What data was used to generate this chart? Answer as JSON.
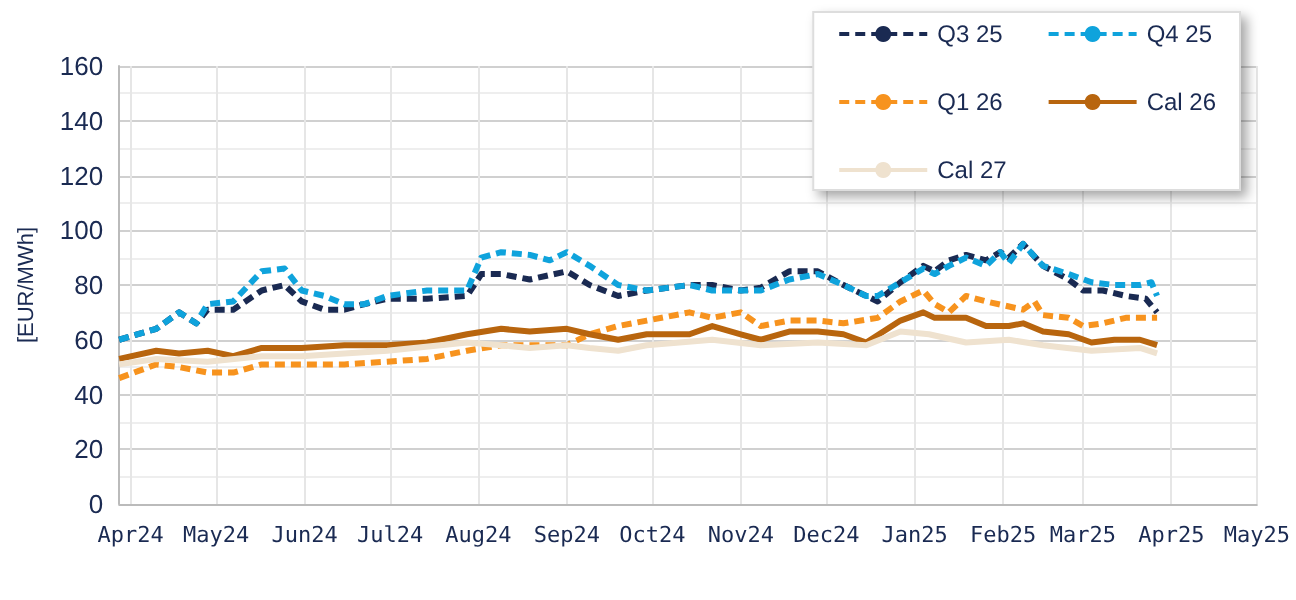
{
  "chart_data": {
    "type": "line",
    "ylabel": "[EUR/MWh]",
    "xlim": [
      "2024-03-28",
      "2025-05-01"
    ],
    "xticks": [
      {
        "value": "2024-04-01",
        "label": "Apr24"
      },
      {
        "value": "2024-05-01",
        "label": "May24"
      },
      {
        "value": "2024-06-01",
        "label": "Jun24"
      },
      {
        "value": "2024-07-01",
        "label": "Jul24"
      },
      {
        "value": "2024-08-01",
        "label": "Aug24"
      },
      {
        "value": "2024-09-01",
        "label": "Sep24"
      },
      {
        "value": "2024-10-01",
        "label": "Oct24"
      },
      {
        "value": "2024-11-01",
        "label": "Nov24"
      },
      {
        "value": "2024-12-01",
        "label": "Dec24"
      },
      {
        "value": "2025-01-01",
        "label": "Jan25"
      },
      {
        "value": "2025-02-01",
        "label": "Feb25"
      },
      {
        "value": "2025-03-01",
        "label": "Mar25"
      },
      {
        "value": "2025-04-01",
        "label": "Apr25"
      },
      {
        "value": "2025-05-01",
        "label": "May25"
      }
    ],
    "ylim": [
      0,
      160
    ],
    "yticks": [
      0,
      20,
      40,
      60,
      80,
      100,
      120,
      140,
      160
    ],
    "grid": true,
    "legend": "top right",
    "marker": "none",
    "series": [
      {
        "name": "Q3 25",
        "color": "#1a2a52",
        "line_style": "dashed",
        "x": [
          "2024-03-28",
          "2024-04-10",
          "2024-04-18",
          "2024-04-24",
          "2024-04-28",
          "2024-05-07",
          "2024-05-17",
          "2024-05-25",
          "2024-05-31",
          "2024-06-08",
          "2024-06-15",
          "2024-06-22",
          "2024-06-30",
          "2024-07-14",
          "2024-07-28",
          "2024-08-02",
          "2024-08-09",
          "2024-08-19",
          "2024-09-01",
          "2024-09-09",
          "2024-09-19",
          "2024-09-29",
          "2024-10-14",
          "2024-10-22",
          "2024-11-01",
          "2024-11-08",
          "2024-11-18",
          "2024-11-28",
          "2024-12-07",
          "2024-12-15",
          "2024-12-19",
          "2024-12-27",
          "2025-01-04",
          "2025-01-08",
          "2025-01-13",
          "2025-01-19",
          "2025-01-26",
          "2025-01-31",
          "2025-02-03",
          "2025-02-08",
          "2025-02-15",
          "2025-02-24",
          "2025-03-01",
          "2025-03-08",
          "2025-03-16",
          "2025-03-23",
          "2025-03-27"
        ],
        "values": [
          60,
          64,
          70,
          66,
          71,
          71,
          78,
          80,
          74,
          71,
          71,
          73,
          75,
          75,
          76,
          84,
          84,
          82,
          85,
          80,
          76,
          78,
          80,
          80,
          78,
          79,
          85,
          85,
          80,
          76,
          74,
          81,
          87,
          85,
          89,
          91,
          89,
          92,
          90,
          95,
          87,
          82,
          78,
          78,
          76,
          75,
          70
        ]
      },
      {
        "name": "Q4 25",
        "color": "#0fa3dc",
        "line_style": "dashed",
        "x": [
          "2024-03-28",
          "2024-04-10",
          "2024-04-18",
          "2024-04-24",
          "2024-04-28",
          "2024-05-07",
          "2024-05-17",
          "2024-05-25",
          "2024-05-31",
          "2024-06-08",
          "2024-06-15",
          "2024-06-22",
          "2024-06-30",
          "2024-07-14",
          "2024-07-28",
          "2024-08-02",
          "2024-08-09",
          "2024-08-19",
          "2024-08-26",
          "2024-09-01",
          "2024-09-09",
          "2024-09-19",
          "2024-09-29",
          "2024-10-14",
          "2024-10-22",
          "2024-11-01",
          "2024-11-08",
          "2024-11-18",
          "2024-11-28",
          "2024-12-07",
          "2024-12-15",
          "2024-12-19",
          "2024-12-27",
          "2025-01-04",
          "2025-01-08",
          "2025-01-13",
          "2025-01-19",
          "2025-01-26",
          "2025-01-31",
          "2025-02-03",
          "2025-02-08",
          "2025-02-15",
          "2025-02-24",
          "2025-03-04",
          "2025-03-12",
          "2025-03-21",
          "2025-03-25",
          "2025-03-27"
        ],
        "values": [
          60,
          64,
          70,
          66,
          73,
          74,
          85,
          86,
          78,
          76,
          73,
          73,
          76,
          78,
          78,
          90,
          92,
          91,
          89,
          92,
          87,
          80,
          78,
          80,
          78,
          78,
          78,
          82,
          84,
          80,
          76,
          76,
          81,
          86,
          84,
          87,
          90,
          87,
          92,
          88,
          95,
          87,
          84,
          81,
          80,
          80,
          81,
          76
        ]
      },
      {
        "name": "Q1 26",
        "color": "#f7931e",
        "line_style": "dashed",
        "x": [
          "2024-03-28",
          "2024-04-10",
          "2024-04-18",
          "2024-04-28",
          "2024-05-07",
          "2024-05-17",
          "2024-05-31",
          "2024-06-15",
          "2024-06-30",
          "2024-07-14",
          "2024-07-28",
          "2024-08-09",
          "2024-08-19",
          "2024-09-01",
          "2024-09-09",
          "2024-09-19",
          "2024-09-29",
          "2024-10-14",
          "2024-10-22",
          "2024-11-01",
          "2024-11-08",
          "2024-11-18",
          "2024-11-28",
          "2024-12-07",
          "2024-12-19",
          "2024-12-27",
          "2025-01-04",
          "2025-01-08",
          "2025-01-13",
          "2025-01-19",
          "2025-01-26",
          "2025-02-08",
          "2025-02-12",
          "2025-02-15",
          "2025-02-24",
          "2025-03-01",
          "2025-03-08",
          "2025-03-16",
          "2025-03-27"
        ],
        "values": [
          46,
          51,
          50,
          48,
          48,
          51,
          51,
          51,
          52,
          53,
          56,
          58,
          58,
          58,
          62,
          65,
          67,
          70,
          68,
          70,
          65,
          67,
          67,
          66,
          68,
          74,
          78,
          73,
          70,
          76,
          74,
          71,
          74,
          69,
          68,
          65,
          66,
          68,
          68
        ]
      },
      {
        "name": "Cal 26",
        "color": "#b8650e",
        "line_style": "solid",
        "x": [
          "2024-03-28",
          "2024-04-10",
          "2024-04-18",
          "2024-04-28",
          "2024-05-07",
          "2024-05-17",
          "2024-05-31",
          "2024-06-15",
          "2024-06-30",
          "2024-07-14",
          "2024-07-28",
          "2024-08-09",
          "2024-08-19",
          "2024-09-01",
          "2024-09-09",
          "2024-09-19",
          "2024-09-29",
          "2024-10-14",
          "2024-10-22",
          "2024-11-01",
          "2024-11-08",
          "2024-11-18",
          "2024-11-28",
          "2024-12-07",
          "2024-12-15",
          "2024-12-27",
          "2025-01-04",
          "2025-01-08",
          "2025-01-19",
          "2025-01-26",
          "2025-02-03",
          "2025-02-08",
          "2025-02-15",
          "2025-02-24",
          "2025-03-04",
          "2025-03-12",
          "2025-03-21",
          "2025-03-27"
        ],
        "values": [
          53,
          56,
          55,
          56,
          54,
          57,
          57,
          58,
          58,
          59,
          62,
          64,
          63,
          64,
          62,
          60,
          62,
          62,
          65,
          62,
          60,
          63,
          63,
          62,
          59,
          67,
          70,
          68,
          68,
          65,
          65,
          66,
          63,
          62,
          59,
          60,
          60,
          58
        ]
      },
      {
        "name": "Cal 27",
        "color": "#efe2cf",
        "line_style": "solid",
        "x": [
          "2024-03-28",
          "2024-04-10",
          "2024-04-28",
          "2024-05-17",
          "2024-05-31",
          "2024-06-30",
          "2024-07-28",
          "2024-08-09",
          "2024-08-19",
          "2024-09-01",
          "2024-09-09",
          "2024-09-19",
          "2024-09-29",
          "2024-10-22",
          "2024-11-08",
          "2024-11-28",
          "2024-12-15",
          "2024-12-27",
          "2025-01-06",
          "2025-01-19",
          "2025-02-03",
          "2025-02-15",
          "2025-03-04",
          "2025-03-21",
          "2025-03-27"
        ],
        "values": [
          51,
          53,
          52,
          54,
          54,
          56,
          59,
          58,
          57,
          58,
          57,
          56,
          58,
          60,
          58,
          59,
          58,
          63,
          62,
          59,
          60,
          58,
          56,
          57,
          55
        ]
      }
    ]
  }
}
